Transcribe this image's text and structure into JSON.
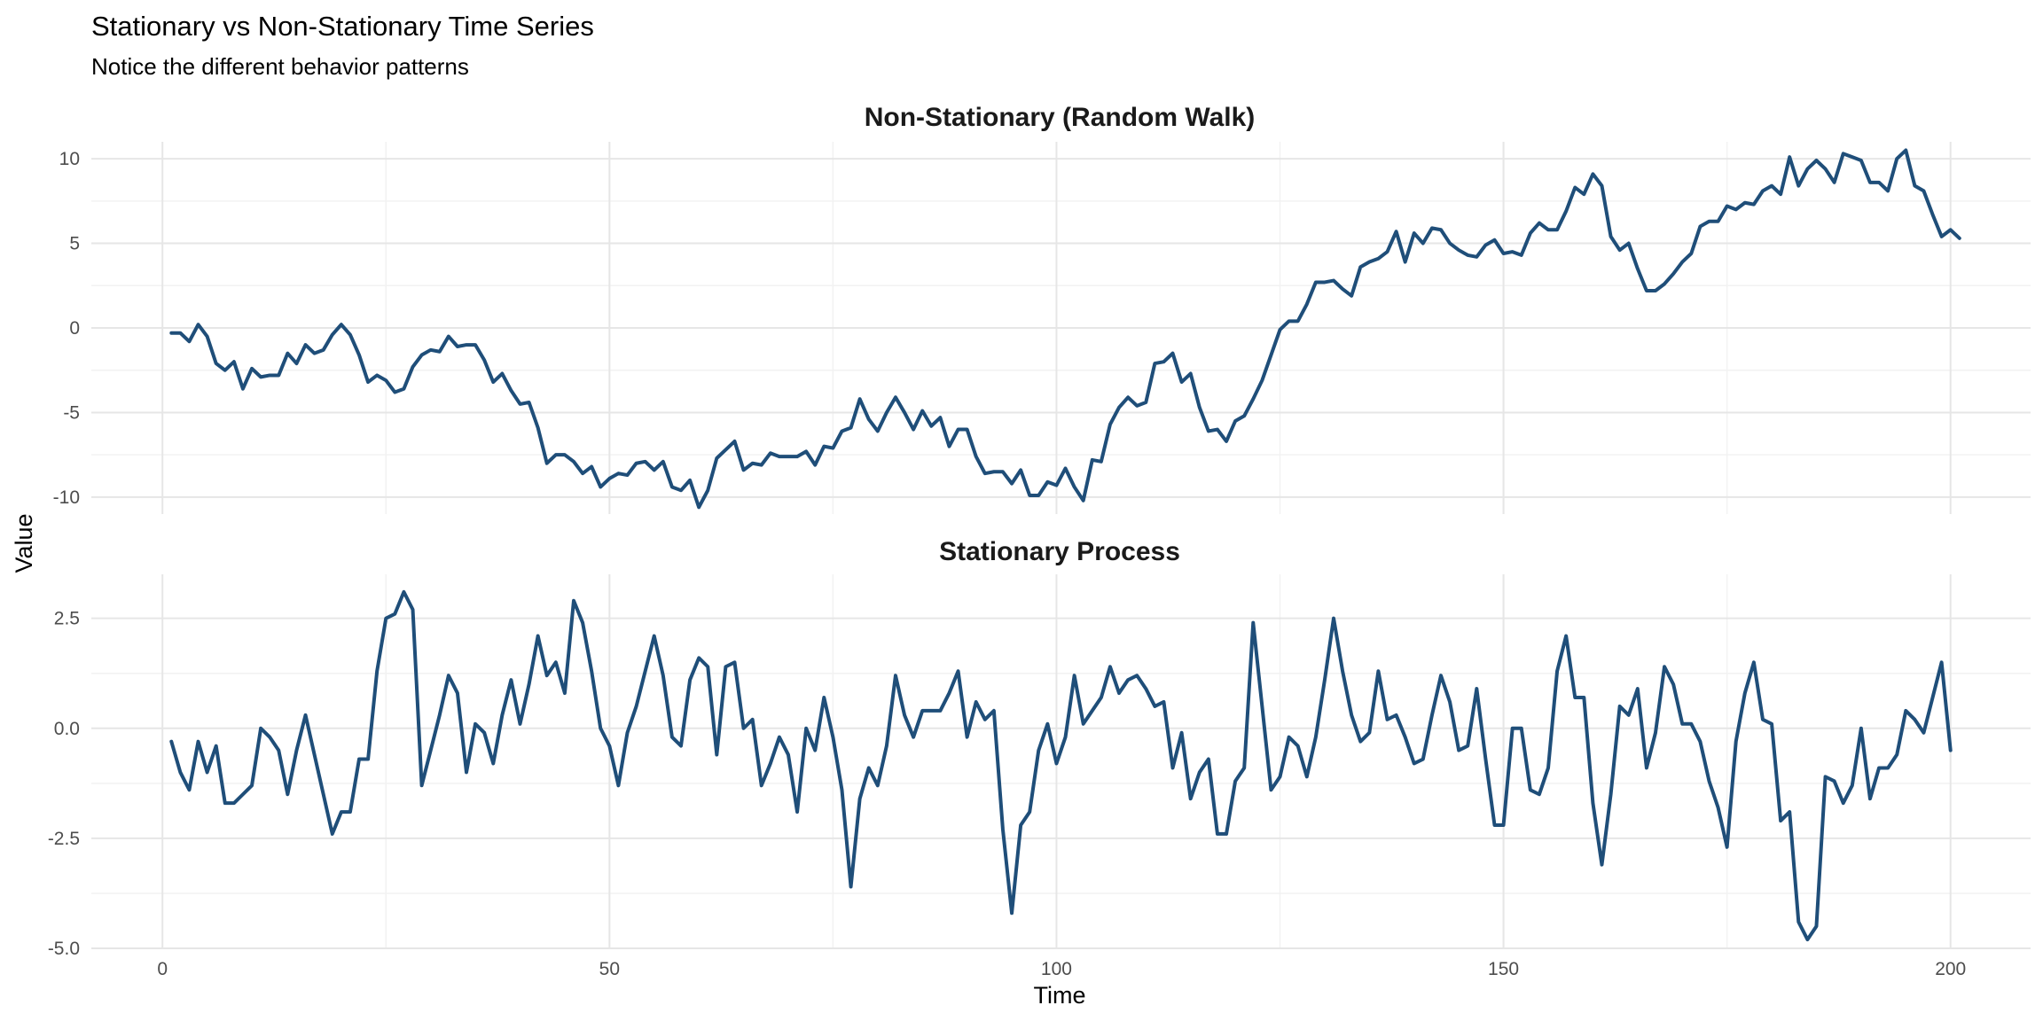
{
  "chart_data": {
    "type": "line",
    "title": "Stationary vs Non-Stationary Time Series",
    "subtitle": "Notice the different behavior patterns",
    "xlabel": "Time",
    "ylabel": "Value",
    "xlim": [
      1,
      200
    ],
    "x_ticks": [
      0,
      50,
      100,
      150,
      200
    ],
    "grid": true,
    "line_color": "#1f4e79",
    "panels": [
      {
        "name": "Non-Stationary (Random Walk)",
        "ylim": [
          -11,
          11
        ],
        "y_ticks": [
          -10,
          -5,
          0,
          5,
          10
        ],
        "y_tick_labels": [
          "-10",
          "-5",
          "0",
          "5",
          "10"
        ],
        "values": [
          -0.3,
          -0.3,
          -0.8,
          0.2,
          -0.5,
          -2.1,
          -2.5,
          -2.0,
          -3.6,
          -2.4,
          -2.9,
          -2.8,
          -2.8,
          -1.5,
          -2.1,
          -1.0,
          -1.5,
          -1.3,
          -0.4,
          0.2,
          -0.4,
          -1.6,
          -3.2,
          -2.8,
          -3.1,
          -3.8,
          -3.6,
          -2.3,
          -1.6,
          -1.3,
          -1.4,
          -0.5,
          -1.1,
          -1.0,
          -1.0,
          -1.9,
          -3.2,
          -2.7,
          -3.7,
          -4.5,
          -4.4,
          -5.9,
          -8.0,
          -7.5,
          -7.5,
          -7.9,
          -8.6,
          -8.2,
          -9.4,
          -8.9,
          -8.6,
          -8.7,
          -8.0,
          -7.9,
          -8.4,
          -7.9,
          -9.4,
          -9.6,
          -9.0,
          -10.6,
          -9.6,
          -7.7,
          -7.2,
          -6.7,
          -8.4,
          -8.0,
          -8.1,
          -7.4,
          -7.6,
          -7.6,
          -7.6,
          -7.3,
          -8.1,
          -7.0,
          -7.1,
          -6.1,
          -5.9,
          -4.2,
          -5.4,
          -6.1,
          -5.0,
          -4.1,
          -5.0,
          -6.0,
          -4.9,
          -5.8,
          -5.3,
          -7.0,
          -6.0,
          -6.0,
          -7.6,
          -8.6,
          -8.5,
          -8.5,
          -9.2,
          -8.4,
          -9.9,
          -9.9,
          -9.1,
          -9.3,
          -8.3,
          -9.4,
          -10.2,
          -7.8,
          -7.9,
          -5.7,
          -4.7,
          -4.1,
          -4.6,
          -4.4,
          -2.1,
          -2.0,
          -1.5,
          -3.2,
          -2.7,
          -4.7,
          -6.1,
          -6.0,
          -6.7,
          -5.5,
          -5.2,
          -4.2,
          -3.1,
          -1.6,
          -0.1,
          0.4,
          0.4,
          1.4,
          2.7,
          2.7,
          2.8,
          2.3,
          1.9,
          3.6,
          3.9,
          4.1,
          4.5,
          5.7,
          3.9,
          5.6,
          5.0,
          5.9,
          5.8,
          5.0,
          4.6,
          4.3,
          4.2,
          4.9,
          5.2,
          4.4,
          4.5,
          4.3,
          5.6,
          6.2,
          5.8,
          5.8,
          6.9,
          8.3,
          7.9,
          9.1,
          8.4,
          5.4,
          4.6,
          5.0,
          3.5,
          2.2,
          2.2,
          2.6,
          3.2,
          3.9,
          4.4,
          6.0,
          6.3,
          6.3,
          7.2,
          7.0,
          7.4,
          7.3,
          8.1,
          8.4,
          7.9,
          10.1,
          8.4,
          9.4,
          9.9,
          9.4,
          8.6,
          10.3,
          10.1,
          9.9,
          8.6,
          8.6,
          8.1,
          10.0,
          10.5,
          8.4,
          8.1,
          6.7,
          5.4,
          5.8,
          5.3
        ]
      },
      {
        "name": "Stationary Process",
        "ylim": [
          -5.0,
          3.5
        ],
        "y_ticks": [
          -5,
          -2.5,
          0,
          2.5
        ],
        "y_tick_labels": [
          "-5.0",
          "-2.5",
          "0.0",
          "2.5"
        ],
        "values": [
          -0.3,
          -1.0,
          -1.4,
          -0.3,
          -1.0,
          -0.4,
          -1.7,
          -1.7,
          -1.5,
          -1.3,
          0.0,
          -0.2,
          -0.5,
          -1.5,
          -0.5,
          0.3,
          -0.6,
          -1.5,
          -2.4,
          -1.9,
          -1.9,
          -0.7,
          -0.7,
          1.3,
          2.5,
          2.6,
          3.1,
          2.7,
          -1.3,
          -0.5,
          0.3,
          1.2,
          0.8,
          -1.0,
          0.1,
          -0.1,
          -0.8,
          0.3,
          1.1,
          0.1,
          1.0,
          2.1,
          1.2,
          1.5,
          0.8,
          2.9,
          2.4,
          1.3,
          0.0,
          -0.4,
          -1.3,
          -0.1,
          0.5,
          1.3,
          2.1,
          1.2,
          -0.2,
          -0.4,
          1.1,
          1.6,
          1.4,
          -0.6,
          1.4,
          1.5,
          0.0,
          0.2,
          -1.3,
          -0.8,
          -0.2,
          -0.6,
          -1.9,
          0.0,
          -0.5,
          0.7,
          -0.2,
          -1.4,
          -3.6,
          -1.6,
          -0.9,
          -1.3,
          -0.4,
          1.2,
          0.3,
          -0.2,
          0.4,
          0.4,
          0.4,
          0.8,
          1.3,
          -0.2,
          0.6,
          0.2,
          0.4,
          -2.3,
          -4.2,
          -2.2,
          -1.9,
          -0.5,
          0.1,
          -0.8,
          -0.2,
          1.2,
          0.1,
          0.4,
          0.7,
          1.4,
          0.8,
          1.1,
          1.2,
          0.9,
          0.5,
          0.6,
          -0.9,
          -0.1,
          -1.6,
          -1.0,
          -0.7,
          -2.4,
          -2.4,
          -1.2,
          -0.9,
          2.4,
          0.5,
          -1.4,
          -1.1,
          -0.2,
          -0.4,
          -1.1,
          -0.2,
          1.1,
          2.5,
          1.3,
          0.3,
          -0.3,
          -0.1,
          1.3,
          0.2,
          0.3,
          -0.2,
          -0.8,
          -0.7,
          0.3,
          1.2,
          0.6,
          -0.5,
          -0.4,
          0.9,
          -0.7,
          -2.2,
          -2.2,
          0.0,
          0.0,
          -1.4,
          -1.5,
          -0.9,
          1.3,
          2.1,
          0.7,
          0.7,
          -1.7,
          -3.1,
          -1.5,
          0.5,
          0.3,
          0.9,
          -0.9,
          -0.1,
          1.4,
          1.0,
          0.1,
          0.1,
          -0.3,
          -1.2,
          -1.8,
          -2.7,
          -0.3,
          0.8,
          1.5,
          0.2,
          0.1,
          -2.1,
          -1.9,
          -4.4,
          -4.8,
          -4.5,
          -1.1,
          -1.2,
          -1.7,
          -1.3,
          0.0,
          -1.6,
          -0.9,
          -0.9,
          -0.6,
          0.4,
          0.2,
          -0.1,
          0.7,
          1.5,
          -0.5
        ]
      }
    ]
  }
}
